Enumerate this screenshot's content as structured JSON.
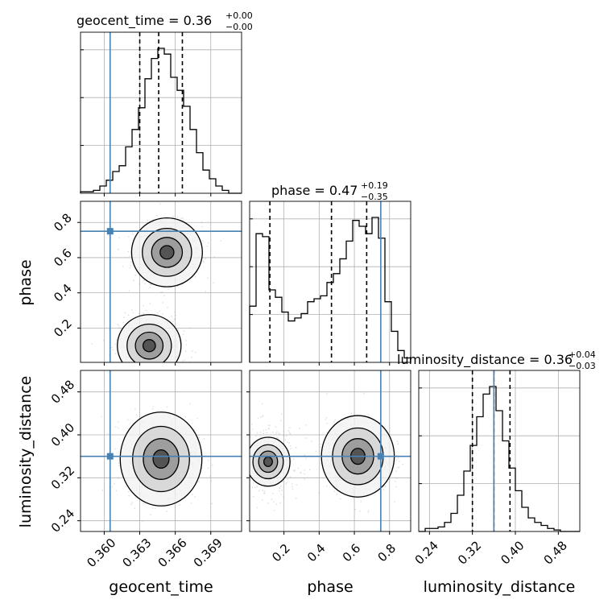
{
  "chart_data": {
    "type": "corner",
    "parameters": [
      "geocent_time",
      "phase",
      "luminosity_distance"
    ],
    "truths": {
      "geocent_time": 0.3605,
      "phase": 0.75,
      "luminosity_distance": 0.36
    },
    "colors": {
      "truth": "#4682b4",
      "line": "#000000",
      "grid": "#b0b0b0",
      "scatter": "#9e9e9e"
    },
    "titles": [
      {
        "param": "geocent_time",
        "text": "geocent_time = 0.36",
        "plus": "+0.00",
        "minus": "−0.00"
      },
      {
        "param": "phase",
        "text": "phase = 0.47",
        "plus": "+0.19",
        "minus": "−0.35"
      },
      {
        "param": "luminosity_distance",
        "text": "luminosity_distance = 0.36",
        "plus": "+0.04",
        "minus": "−0.03"
      }
    ],
    "axes": {
      "geocent_time": {
        "range": [
          0.358,
          0.3716
        ],
        "ticks": [
          0.36,
          0.363,
          0.366,
          0.369
        ],
        "tick_labels": [
          "0.360",
          "0.363",
          "0.366",
          "0.369"
        ],
        "label": "geocent_time"
      },
      "phase": {
        "range": [
          0.005,
          0.92
        ],
        "ticks": [
          0.2,
          0.4,
          0.6,
          0.8
        ],
        "tick_labels": [
          "0.2",
          "0.4",
          "0.6",
          "0.8"
        ],
        "label": "phase"
      },
      "luminosity_distance": {
        "range": [
          0.22,
          0.52
        ],
        "ticks": [
          0.24,
          0.32,
          0.4,
          0.48
        ],
        "tick_labels": [
          "0.24",
          "0.32",
          "0.40",
          "0.48"
        ],
        "label": "luminosity_distance"
      }
    },
    "histograms": {
      "geocent_time": {
        "edges_range": [
          0.358,
          0.3716
        ],
        "counts": [
          0.01,
          0.01,
          0.02,
          0.05,
          0.09,
          0.15,
          0.19,
          0.32,
          0.44,
          0.59,
          0.79,
          0.93,
          1.0,
          0.96,
          0.8,
          0.71,
          0.6,
          0.44,
          0.28,
          0.16,
          0.1,
          0.05,
          0.02,
          0.0,
          0.0
        ],
        "quantiles": [
          0.363,
          0.3646,
          0.3666
        ]
      },
      "phase": {
        "edges_range": [
          0.005,
          0.92
        ],
        "counts": [
          0.38,
          0.87,
          0.85,
          0.49,
          0.44,
          0.34,
          0.28,
          0.3,
          0.33,
          0.41,
          0.43,
          0.45,
          0.54,
          0.6,
          0.7,
          0.82,
          0.96,
          0.92,
          0.87,
          0.98,
          0.84,
          0.41,
          0.21,
          0.08,
          0.03
        ],
        "quantiles": [
          0.12,
          0.47,
          0.67
        ]
      },
      "luminosity_distance": {
        "edges_range": [
          0.22,
          0.52
        ],
        "counts": [
          0.0,
          0.02,
          0.02,
          0.03,
          0.06,
          0.12,
          0.24,
          0.4,
          0.57,
          0.76,
          0.91,
          0.96,
          0.8,
          0.6,
          0.42,
          0.27,
          0.16,
          0.09,
          0.06,
          0.04,
          0.02,
          0.01,
          0.0,
          0.0,
          0.0
        ],
        "quantiles": [
          0.32,
          0.36,
          0.39
        ]
      }
    },
    "joint": {
      "phase_vs_geocent_time": {
        "modes": [
          {
            "x": 0.3653,
            "y": 0.63,
            "w": 1.0
          },
          {
            "x": 0.3638,
            "y": 0.1,
            "w": 0.9
          }
        ]
      },
      "luminosity_distance_vs_geocent_time": {
        "modes": [
          {
            "x": 0.3648,
            "y": 0.355,
            "w": 1.0
          }
        ]
      },
      "luminosity_distance_vs_phase": {
        "modes": [
          {
            "x": 0.62,
            "y": 0.36,
            "w": 1.0
          },
          {
            "x": 0.11,
            "y": 0.35,
            "w": 0.6
          }
        ]
      }
    }
  }
}
